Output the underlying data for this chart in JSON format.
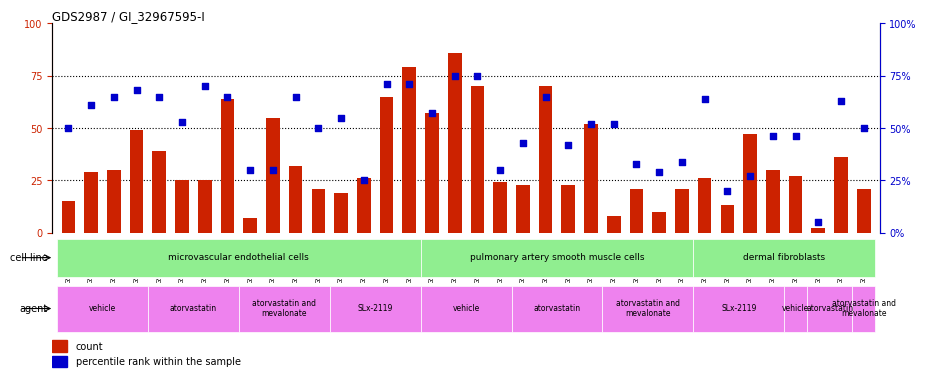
{
  "title": "GDS2987 / GI_32967595-I",
  "samples": [
    "GSM214810",
    "GSM215244",
    "GSM215253",
    "GSM215254",
    "GSM215282",
    "GSM215344",
    "GSM215283",
    "GSM215284",
    "GSM215293",
    "GSM215294",
    "GSM215295",
    "GSM215296",
    "GSM215297",
    "GSM215298",
    "GSM215310",
    "GSM215311",
    "GSM215312",
    "GSM215313",
    "GSM215324",
    "GSM215325",
    "GSM215326",
    "GSM215327",
    "GSM215328",
    "GSM215329",
    "GSM215330",
    "GSM215331",
    "GSM215332",
    "GSM215333",
    "GSM215334",
    "GSM215335",
    "GSM215336",
    "GSM215337",
    "GSM215338",
    "GSM215339",
    "GSM215340",
    "GSM215341"
  ],
  "counts": [
    15,
    29,
    30,
    49,
    39,
    25,
    25,
    64,
    7,
    55,
    32,
    21,
    19,
    26,
    65,
    79,
    57,
    86,
    70,
    24,
    23,
    70,
    23,
    52,
    8,
    21,
    10,
    21,
    26,
    13,
    47,
    30,
    27,
    2,
    36,
    21
  ],
  "percentiles": [
    50,
    61,
    65,
    68,
    65,
    53,
    70,
    65,
    30,
    30,
    65,
    50,
    55,
    25,
    71,
    71,
    57,
    75,
    75,
    30,
    43,
    65,
    42,
    52,
    52,
    33,
    29,
    34,
    64,
    20,
    27,
    46,
    46,
    5,
    63,
    50
  ],
  "cell_line_groups": [
    {
      "label": "microvascular endothelial cells",
      "start": 0,
      "end": 16,
      "color": "#90ee90"
    },
    {
      "label": "pulmonary artery smooth muscle cells",
      "start": 16,
      "end": 28,
      "color": "#90ee90"
    },
    {
      "label": "dermal fibroblasts",
      "start": 28,
      "end": 36,
      "color": "#90ee90"
    }
  ],
  "agent_groups": [
    {
      "label": "vehicle",
      "start": 0,
      "end": 4,
      "color": "#ee82ee"
    },
    {
      "label": "atorvastatin",
      "start": 4,
      "end": 8,
      "color": "#ee82ee"
    },
    {
      "label": "atorvastatin and\nmevalonate",
      "start": 8,
      "end": 12,
      "color": "#ee82ee"
    },
    {
      "label": "SLx-2119",
      "start": 12,
      "end": 16,
      "color": "#ee82ee"
    },
    {
      "label": "vehicle",
      "start": 16,
      "end": 20,
      "color": "#ee82ee"
    },
    {
      "label": "atorvastatin",
      "start": 20,
      "end": 24,
      "color": "#ee82ee"
    },
    {
      "label": "atorvastatin and\nmevalonate",
      "start": 24,
      "end": 28,
      "color": "#ee82ee"
    },
    {
      "label": "SLx-2119",
      "start": 28,
      "end": 32,
      "color": "#ee82ee"
    },
    {
      "label": "vehicle",
      "start": 32,
      "end": 33,
      "color": "#ee82ee"
    },
    {
      "label": "atorvastatin",
      "start": 33,
      "end": 35,
      "color": "#ee82ee"
    },
    {
      "label": "atorvastatin and\nmevalonate",
      "start": 35,
      "end": 36,
      "color": "#ee82ee"
    },
    {
      "label": "SLx-2119",
      "start": 36,
      "end": 36,
      "color": "#ee82ee"
    }
  ],
  "bar_color": "#cc2200",
  "dot_color": "#0000cc",
  "bg_color": "#ffffff",
  "ylim": [
    0,
    100
  ],
  "yticks": [
    0,
    25,
    50,
    75,
    100
  ],
  "yaxis_left_color": "#cc2200",
  "yaxis_right_color": "#0000cc"
}
